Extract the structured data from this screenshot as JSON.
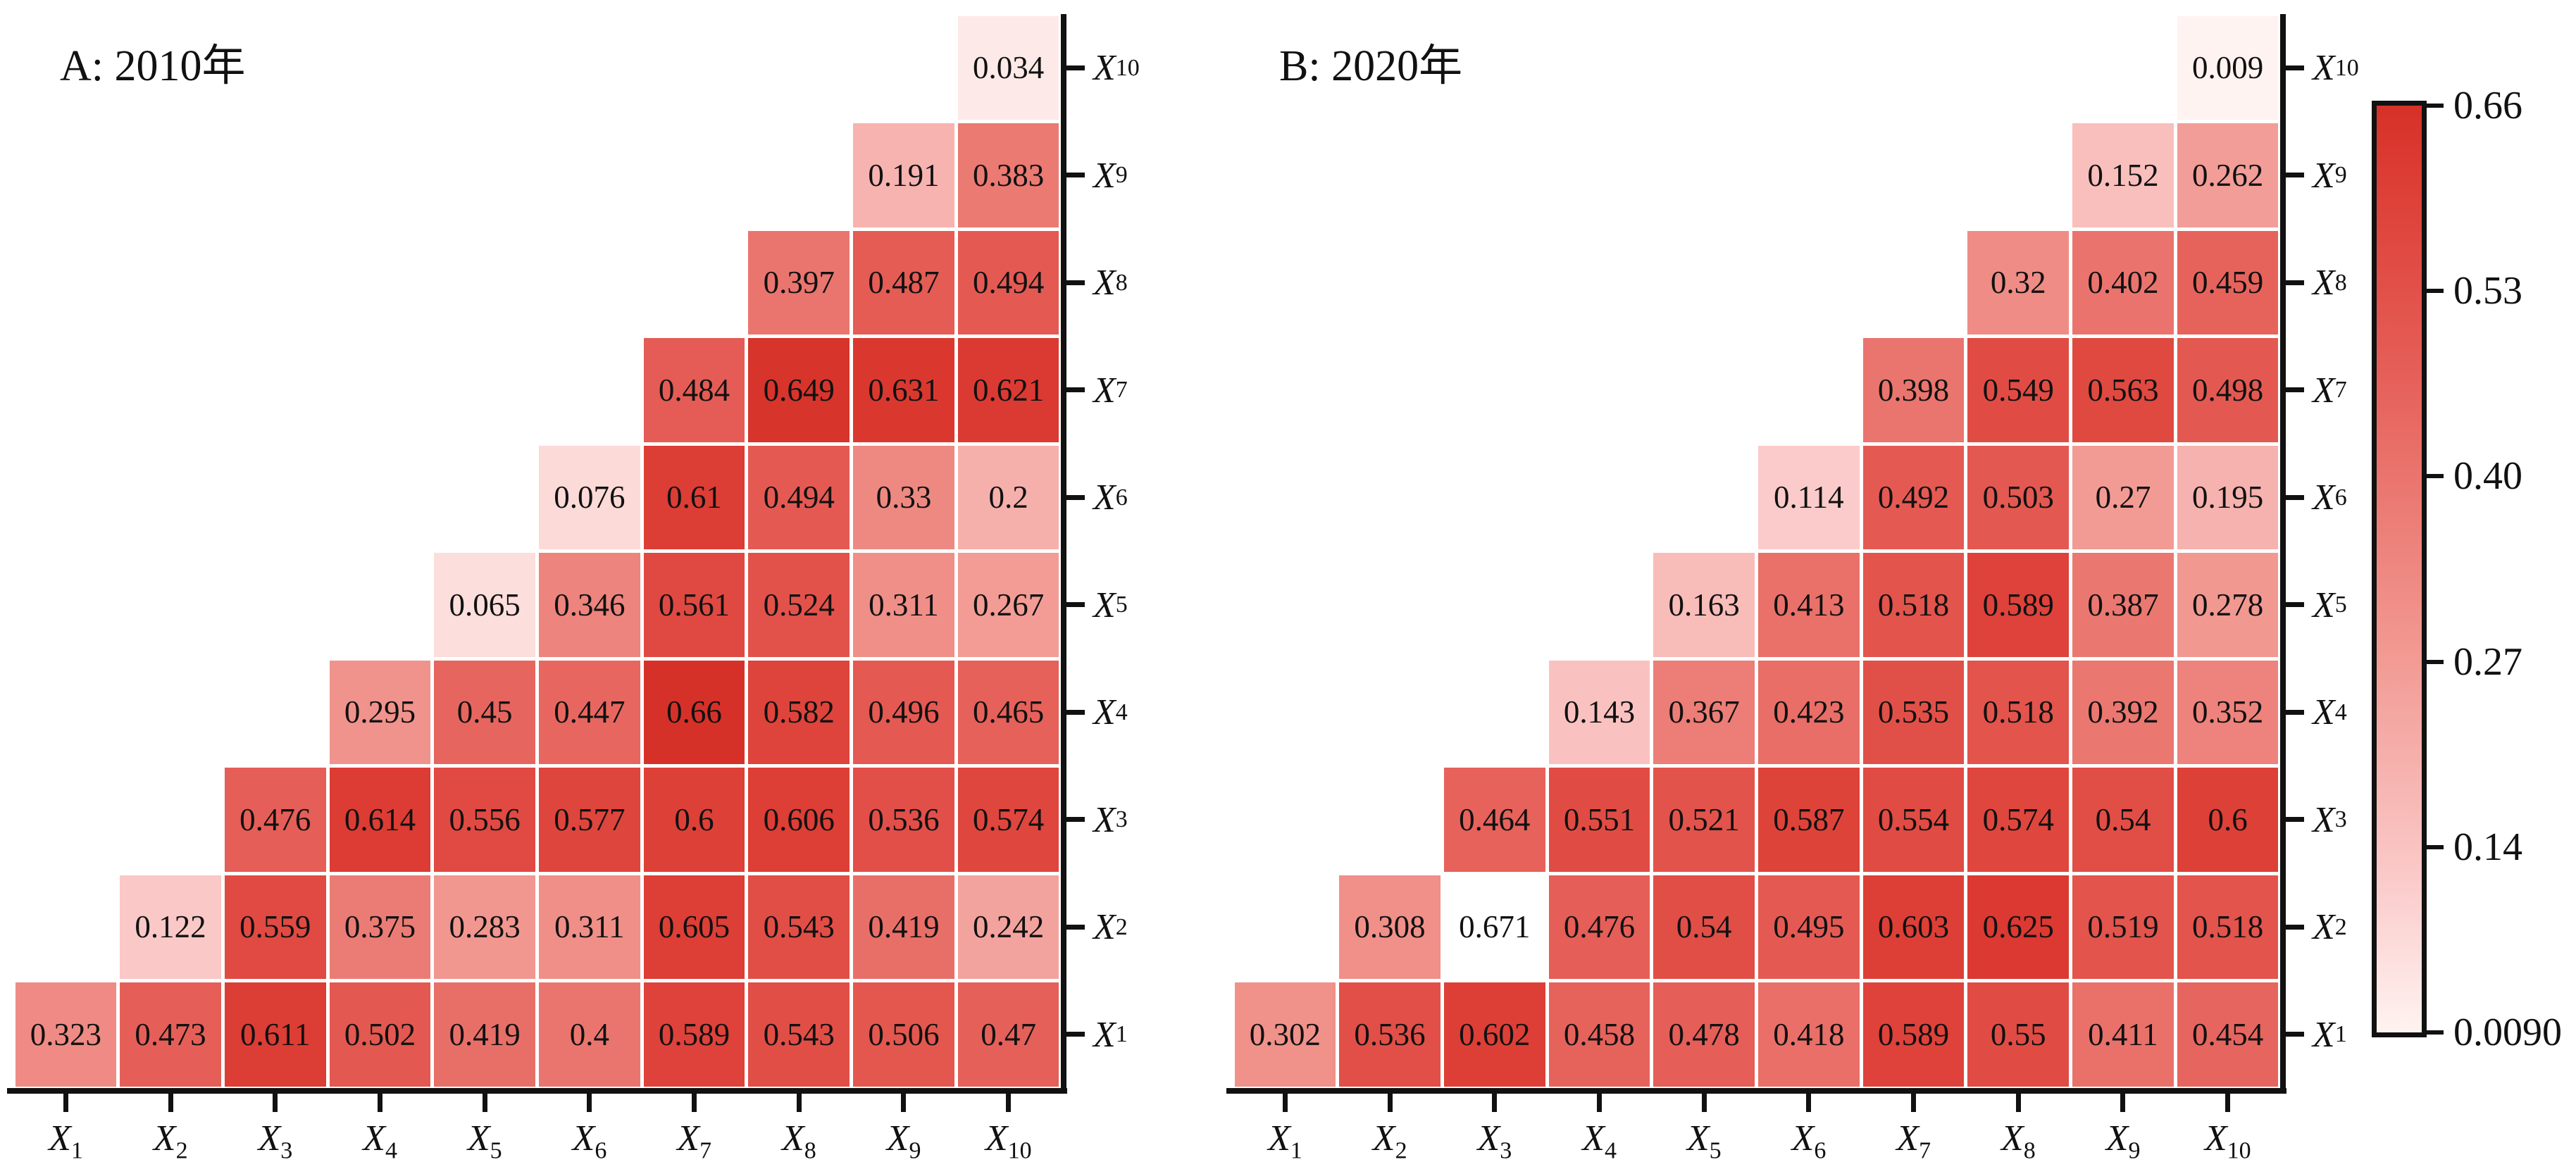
{
  "figure": {
    "background": "#ffffff",
    "axis_color": "#111111",
    "cell_text_color": "#111111"
  },
  "colormap": {
    "vmin": 0.009,
    "vmax": 0.66,
    "over_color": "#ffffff",
    "stops": [
      {
        "t": 0.0,
        "color": [
          254,
          243,
          241
        ]
      },
      {
        "t": 0.175,
        "color": [
          250,
          200,
          199
        ]
      },
      {
        "t": 0.4,
        "color": [
          242,
          155,
          148
        ]
      },
      {
        "t": 0.713,
        "color": [
          229,
          95,
          88
        ]
      },
      {
        "t": 0.93,
        "color": [
          220,
          60,
          51
        ]
      },
      {
        "t": 1.0,
        "color": [
          214,
          49,
          41
        ]
      }
    ]
  },
  "chart_data": [
    {
      "type": "heatmap",
      "title": "A: 2010年",
      "x_axis_vars": [
        {
          "base": "X",
          "sub": "1"
        },
        {
          "base": "X",
          "sub": "2"
        },
        {
          "base": "X",
          "sub": "3"
        },
        {
          "base": "X",
          "sub": "4"
        },
        {
          "base": "X",
          "sub": "5"
        },
        {
          "base": "X",
          "sub": "6"
        },
        {
          "base": "X",
          "sub": "7"
        },
        {
          "base": "X",
          "sub": "8"
        },
        {
          "base": "X",
          "sub": "9"
        },
        {
          "base": "X",
          "sub": "10"
        }
      ],
      "rows": [
        {
          "label": {
            "base": "X",
            "sub": "10"
          },
          "values": [
            "0.034"
          ]
        },
        {
          "label": {
            "base": "X",
            "sub": "9"
          },
          "values": [
            "0.191",
            "0.383"
          ]
        },
        {
          "label": {
            "base": "X",
            "sub": "8"
          },
          "values": [
            "0.397",
            "0.487",
            "0.494"
          ]
        },
        {
          "label": {
            "base": "X",
            "sub": "7"
          },
          "values": [
            "0.484",
            "0.649",
            "0.631",
            "0.621"
          ]
        },
        {
          "label": {
            "base": "X",
            "sub": "6"
          },
          "values": [
            "0.076",
            "0.61",
            "0.494",
            "0.33",
            "0.2"
          ]
        },
        {
          "label": {
            "base": "X",
            "sub": "5"
          },
          "values": [
            "0.065",
            "0.346",
            "0.561",
            "0.524",
            "0.311",
            "0.267"
          ]
        },
        {
          "label": {
            "base": "X",
            "sub": "4"
          },
          "values": [
            "0.295",
            "0.45",
            "0.447",
            "0.66",
            "0.582",
            "0.496",
            "0.465"
          ]
        },
        {
          "label": {
            "base": "X",
            "sub": "3"
          },
          "values": [
            "0.476",
            "0.614",
            "0.556",
            "0.577",
            "0.6",
            "0.606",
            "0.536",
            "0.574"
          ]
        },
        {
          "label": {
            "base": "X",
            "sub": "2"
          },
          "values": [
            "0.122",
            "0.559",
            "0.375",
            "0.283",
            "0.311",
            "0.605",
            "0.543",
            "0.419",
            "0.242"
          ]
        },
        {
          "label": {
            "base": "X",
            "sub": "1"
          },
          "values": [
            "0.323",
            "0.473",
            "0.611",
            "0.502",
            "0.419",
            "0.4",
            "0.589",
            "0.543",
            "0.506",
            "0.47"
          ]
        }
      ]
    },
    {
      "type": "heatmap",
      "title": "B: 2020年",
      "x_axis_vars": [
        {
          "base": "X",
          "sub": "1"
        },
        {
          "base": "X",
          "sub": "2"
        },
        {
          "base": "X",
          "sub": "3"
        },
        {
          "base": "X",
          "sub": "4"
        },
        {
          "base": "X",
          "sub": "5"
        },
        {
          "base": "X",
          "sub": "6"
        },
        {
          "base": "X",
          "sub": "7"
        },
        {
          "base": "X",
          "sub": "8"
        },
        {
          "base": "X",
          "sub": "9"
        },
        {
          "base": "X",
          "sub": "10"
        }
      ],
      "rows": [
        {
          "label": {
            "base": "X",
            "sub": "10"
          },
          "values": [
            "0.009"
          ]
        },
        {
          "label": {
            "base": "X",
            "sub": "9"
          },
          "values": [
            "0.152",
            "0.262"
          ]
        },
        {
          "label": {
            "base": "X",
            "sub": "8"
          },
          "values": [
            "0.32",
            "0.402",
            "0.459"
          ]
        },
        {
          "label": {
            "base": "X",
            "sub": "7"
          },
          "values": [
            "0.398",
            "0.549",
            "0.563",
            "0.498"
          ]
        },
        {
          "label": {
            "base": "X",
            "sub": "6"
          },
          "values": [
            "0.114",
            "0.492",
            "0.503",
            "0.27",
            "0.195"
          ]
        },
        {
          "label": {
            "base": "X",
            "sub": "5"
          },
          "values": [
            "0.163",
            "0.413",
            "0.518",
            "0.589",
            "0.387",
            "0.278"
          ]
        },
        {
          "label": {
            "base": "X",
            "sub": "4"
          },
          "values": [
            "0.143",
            "0.367",
            "0.423",
            "0.535",
            "0.518",
            "0.392",
            "0.352"
          ]
        },
        {
          "label": {
            "base": "X",
            "sub": "3"
          },
          "values": [
            "0.464",
            "0.551",
            "0.521",
            "0.587",
            "0.554",
            "0.574",
            "0.54",
            "0.6"
          ]
        },
        {
          "label": {
            "base": "X",
            "sub": "2"
          },
          "values": [
            "0.308",
            "0.671",
            "0.476",
            "0.54",
            "0.495",
            "0.603",
            "0.625",
            "0.519",
            "0.518"
          ]
        },
        {
          "label": {
            "base": "X",
            "sub": "1"
          },
          "values": [
            "0.302",
            "0.536",
            "0.602",
            "0.458",
            "0.478",
            "0.418",
            "0.589",
            "0.55",
            "0.411",
            "0.454"
          ]
        }
      ]
    }
  ],
  "colorbar": {
    "tick_labels": [
      "0.66",
      "0.53",
      "0.40",
      "0.27",
      "0.14",
      "0.0090"
    ],
    "vmax_label": "0.66",
    "vmin_label": "0.0090"
  }
}
